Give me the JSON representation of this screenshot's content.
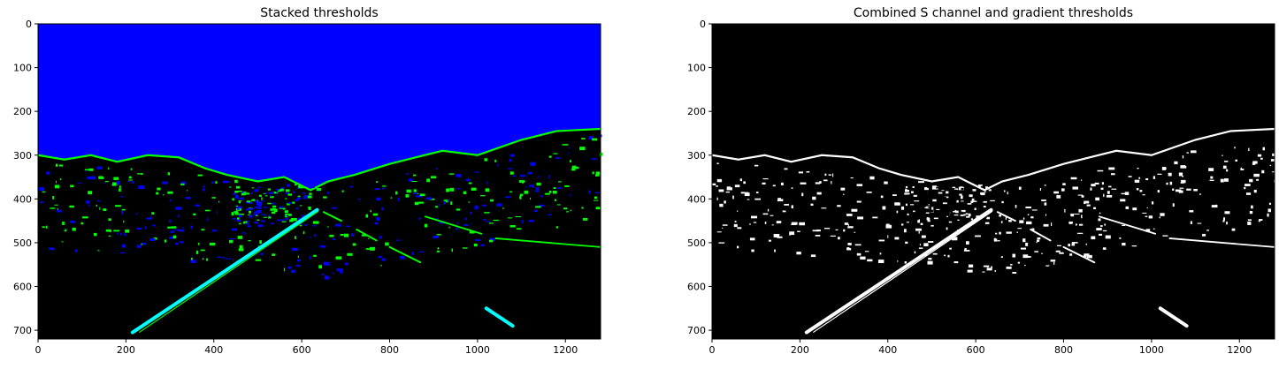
{
  "chart_data": [
    {
      "type": "image",
      "title": "Stacked thresholds",
      "xlabel": "",
      "ylabel": "",
      "xlim": [
        0,
        1280
      ],
      "ylim": [
        720,
        0
      ],
      "xticks": [
        0,
        200,
        400,
        600,
        800,
        1000,
        1200
      ],
      "yticks": [
        0,
        100,
        200,
        300,
        400,
        500,
        600,
        700
      ],
      "colors": {
        "sky": "#0000ff",
        "edges": "#00ff00",
        "both": "#00ffff",
        "ground": "#000000"
      }
    },
    {
      "type": "image",
      "title": "Combined S channel and gradient thresholds",
      "xlabel": "",
      "ylabel": "",
      "xlim": [
        0,
        1280
      ],
      "ylim": [
        720,
        0
      ],
      "xticks": [
        0,
        200,
        400,
        600,
        800,
        1000,
        1200
      ],
      "yticks": [
        0,
        100,
        200,
        300,
        400,
        500,
        600,
        700
      ],
      "colors": {
        "sky": "#000000",
        "edges": "#ffffff",
        "both": "#ffffff",
        "ground": "#000000"
      }
    }
  ]
}
